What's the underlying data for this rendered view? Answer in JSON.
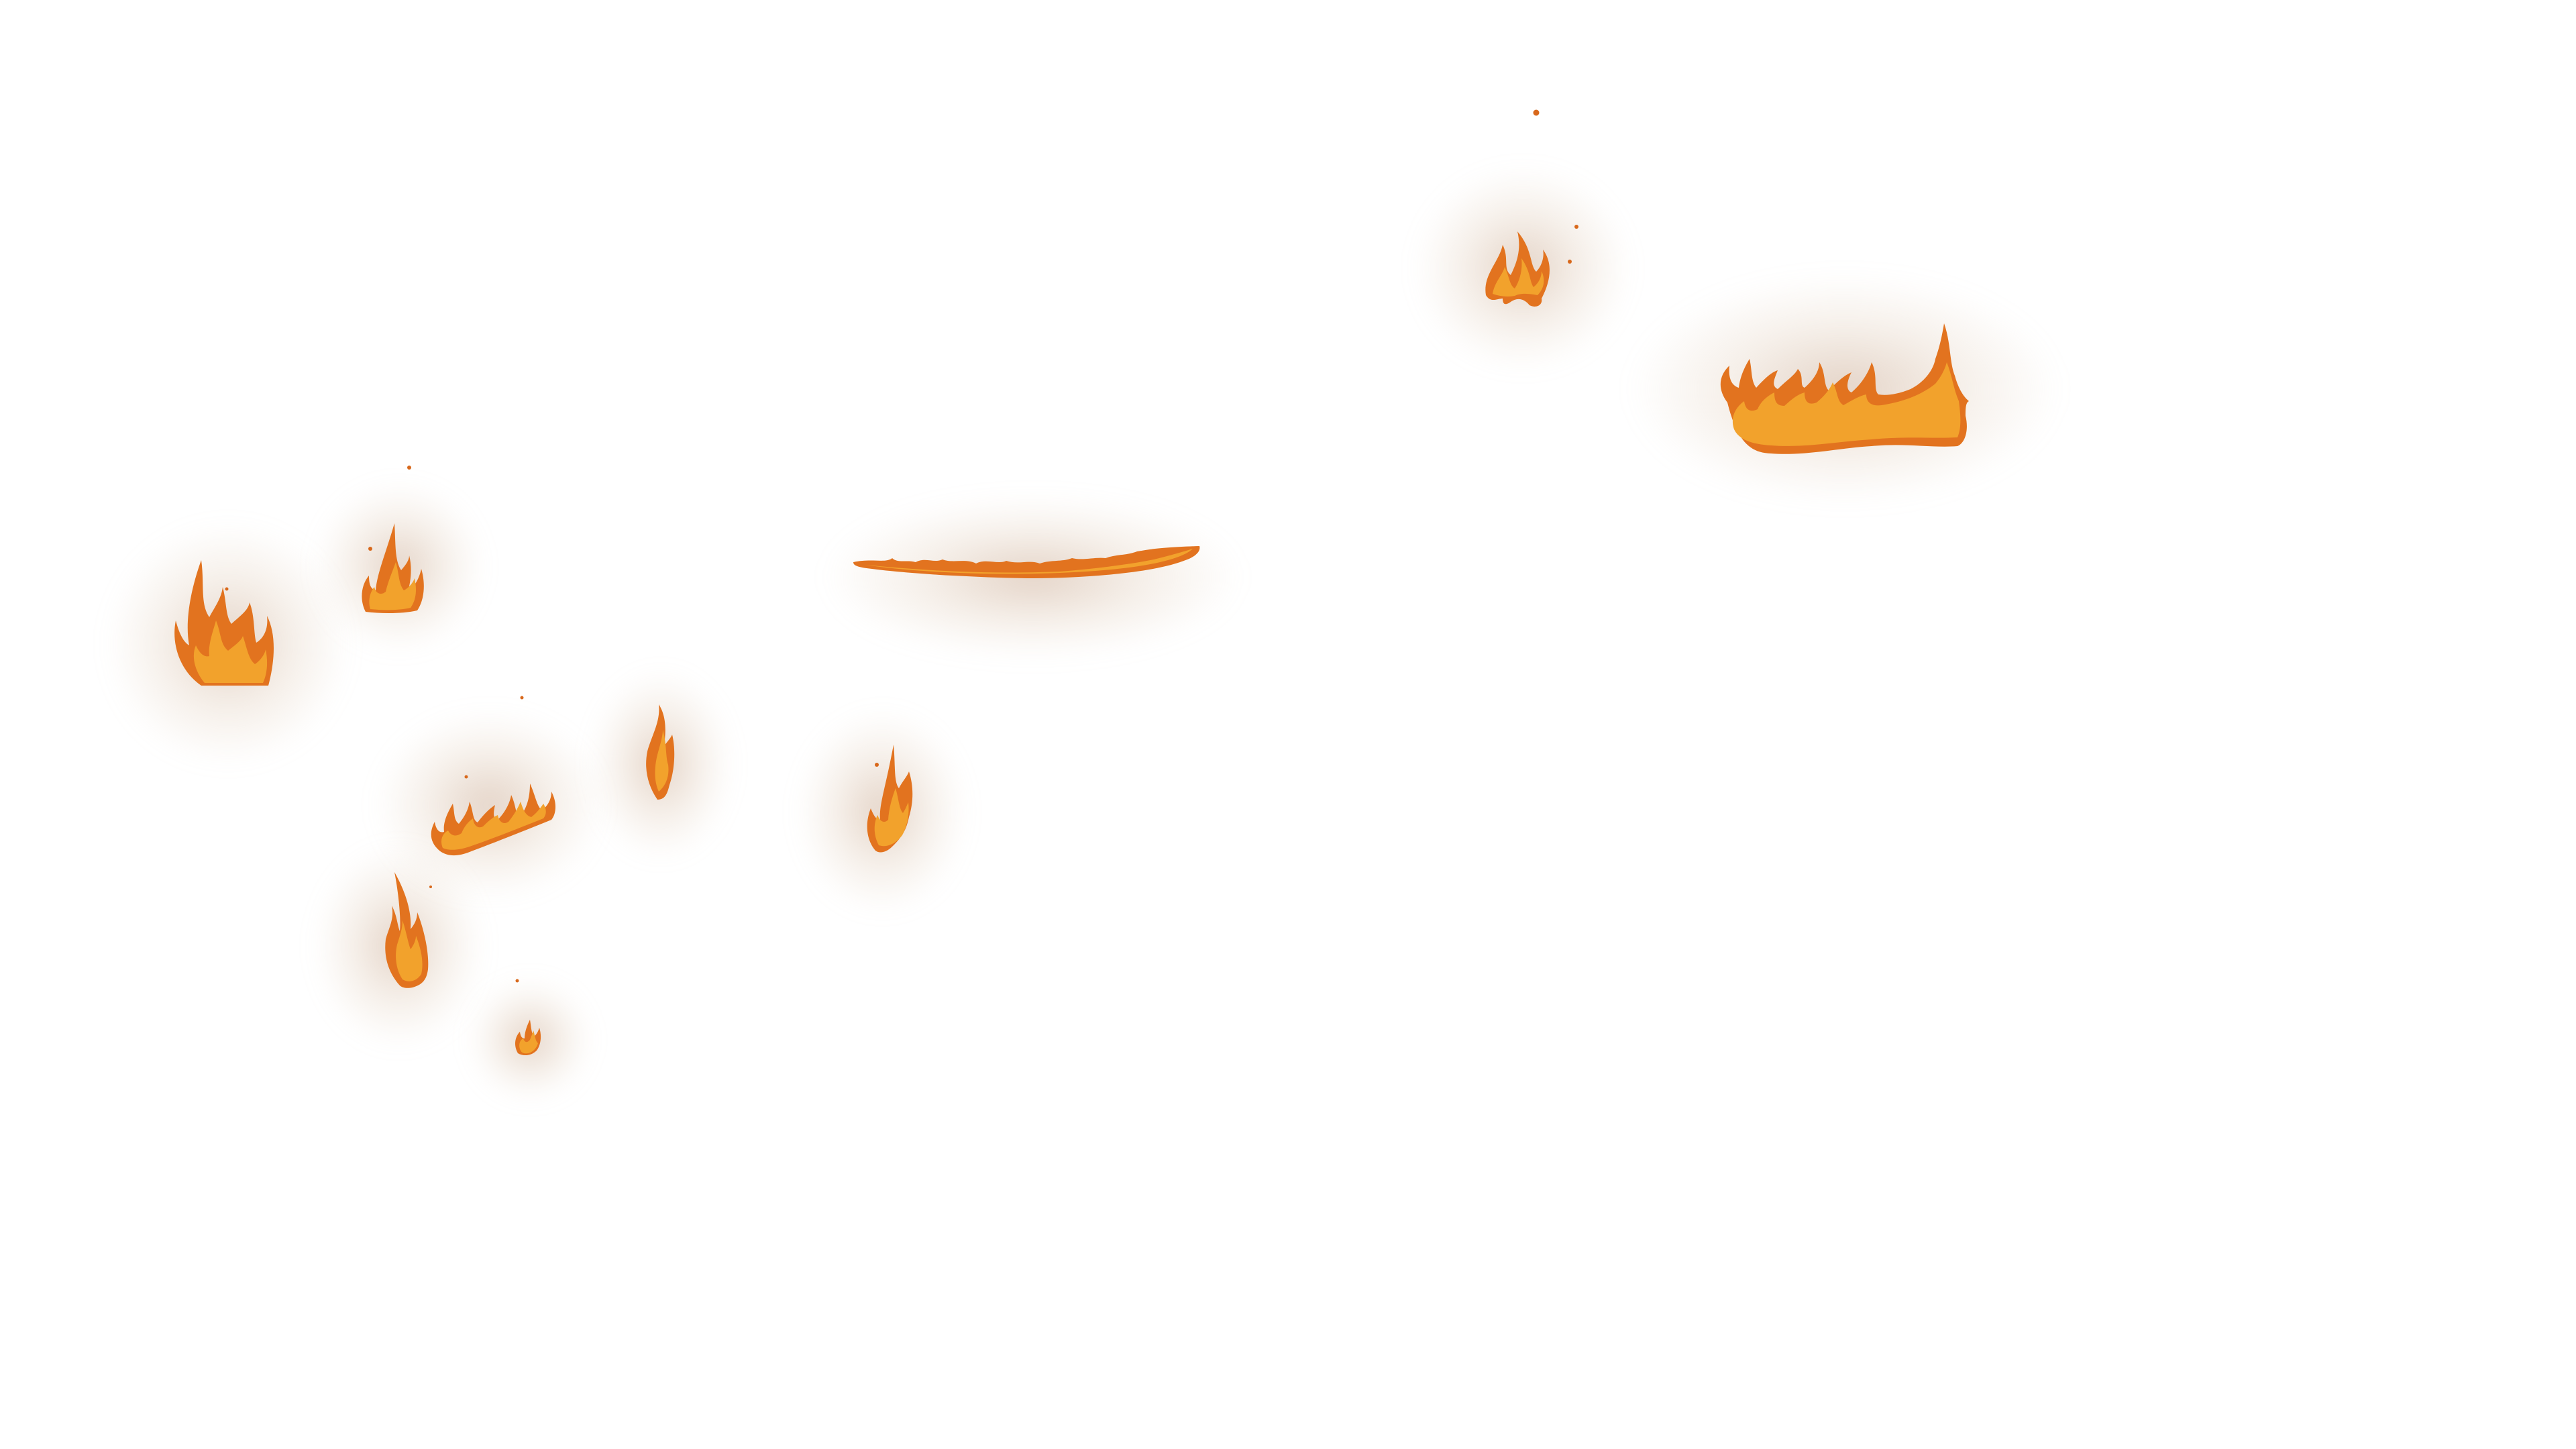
{
  "scene": {
    "background": "#ffffff",
    "outer_flame_color": "#e2731f",
    "inner_flame_color": "#f2a22c",
    "glow_color": "#b98d6c",
    "ember_color": "#d8681b"
  },
  "flames": [
    {
      "name": "flame-cluster-top-center",
      "icon": "fire-icon"
    },
    {
      "name": "flame-strip-top-right",
      "icon": "fire-icon"
    },
    {
      "name": "flame-ribbon-center",
      "icon": "fire-icon"
    },
    {
      "name": "flame-left-large",
      "icon": "fire-icon"
    },
    {
      "name": "flame-left-small",
      "icon": "fire-icon"
    },
    {
      "name": "flame-row-left",
      "icon": "fire-icon"
    },
    {
      "name": "flame-wisp-middle",
      "icon": "fire-icon"
    },
    {
      "name": "flame-center-small",
      "icon": "fire-icon"
    },
    {
      "name": "flame-tall-lower-left",
      "icon": "fire-icon"
    },
    {
      "name": "flame-tiny-bottom",
      "icon": "fire-icon"
    }
  ],
  "embers": {
    "icon": "ember-icon"
  }
}
